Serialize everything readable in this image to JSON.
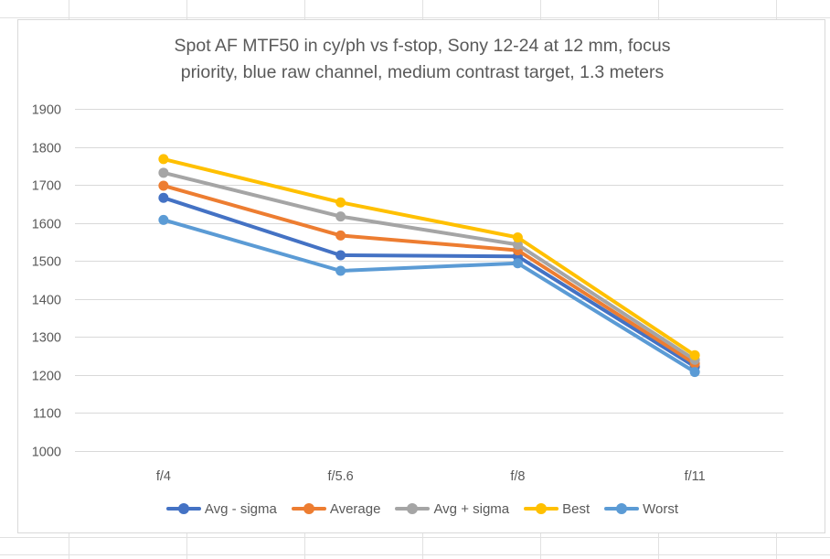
{
  "chart_data": {
    "type": "line",
    "title_lines": [
      "Spot AF MTF50 in cy/ph vs f-stop, Sony 12-24 at 12 mm, focus",
      "priority, blue raw channel, medium contrast target, 1.3 meters"
    ],
    "categories": [
      "f/4",
      "f/5.6",
      "f/8",
      "f/11"
    ],
    "ylim": [
      1000,
      1900
    ],
    "ytick_step": 100,
    "grid": true,
    "legend_position": "bottom",
    "series": [
      {
        "name": "Avg - sigma",
        "color": "#4472c4",
        "values": [
          1666,
          1515,
          1512,
          1222
        ]
      },
      {
        "name": "Average",
        "color": "#ed7d31",
        "values": [
          1698,
          1567,
          1528,
          1230
        ]
      },
      {
        "name": "Avg + sigma",
        "color": "#a5a5a5",
        "values": [
          1732,
          1617,
          1543,
          1240
        ]
      },
      {
        "name": "Best",
        "color": "#ffc000",
        "values": [
          1768,
          1654,
          1562,
          1252
        ]
      },
      {
        "name": "Worst",
        "color": "#5b9bd5",
        "values": [
          1608,
          1474,
          1494,
          1208
        ]
      }
    ]
  }
}
